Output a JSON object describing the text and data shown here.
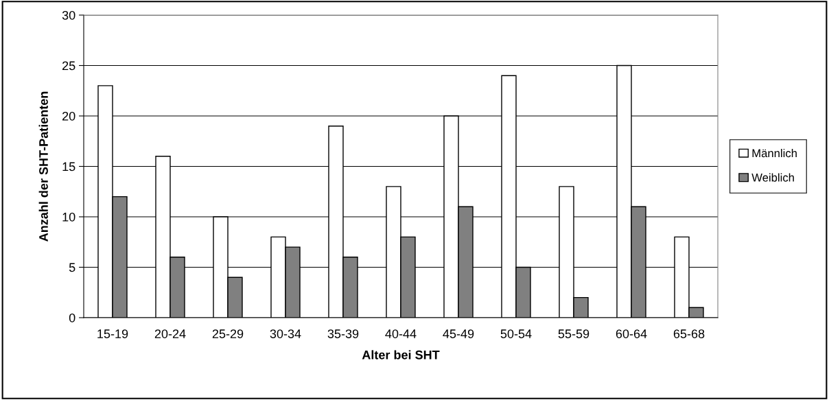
{
  "chart_data": {
    "type": "bar",
    "xlabel": "Alter bei SHT",
    "ylabel": "Anzahl der SHT-Patienten",
    "categories": [
      "15-19",
      "20-24",
      "25-29",
      "30-34",
      "35-39",
      "40-44",
      "45-49",
      "50-54",
      "55-59",
      "60-64",
      "65-68"
    ],
    "series": [
      {
        "name": "Männlich",
        "color": "#ffffff",
        "values": [
          23,
          16,
          10,
          8,
          19,
          13,
          20,
          24,
          13,
          25,
          8
        ]
      },
      {
        "name": "Weiblich",
        "color": "#808080",
        "values": [
          12,
          6,
          4,
          7,
          6,
          8,
          11,
          5,
          2,
          11,
          1
        ]
      }
    ],
    "ylim": [
      0,
      30
    ],
    "yticks": [
      0,
      5,
      10,
      15,
      20,
      25,
      30
    ],
    "grid": "y",
    "legend": "right"
  }
}
